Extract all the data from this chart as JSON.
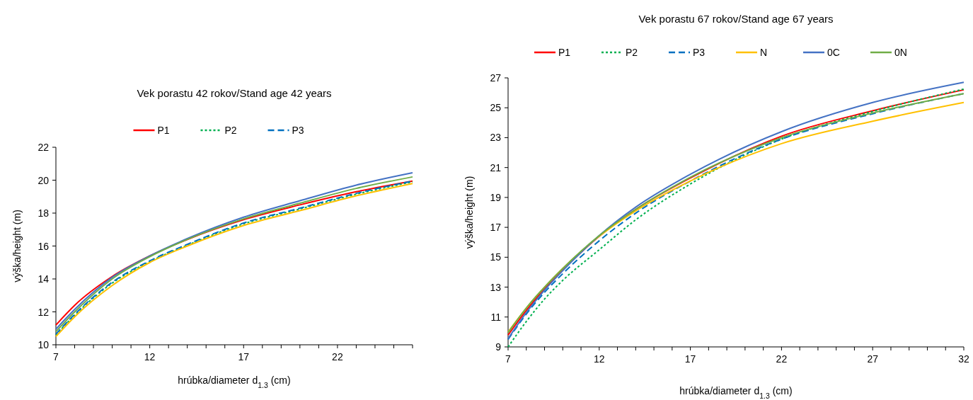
{
  "chart_data": [
    {
      "type": "line",
      "title": "Vek porastu 42 rokov/Stand age 42 years",
      "xlabel": "hrúbka/diameter d$_{1.3}$ (cm)",
      "ylabel": "výška/height (m)",
      "xlim": [
        7,
        26
      ],
      "ylim": [
        10,
        22
      ],
      "xticks": [
        7,
        {
          "value": 8,
          "label": null
        },
        {
          "value": 9,
          "label": null
        },
        {
          "value": 10,
          "label": null
        },
        {
          "value": 11,
          "label": null
        },
        12,
        {
          "value": 13,
          "label": null
        },
        {
          "value": 14,
          "label": null
        },
        {
          "value": 15,
          "label": null
        },
        {
          "value": 16,
          "label": null
        },
        17,
        {
          "value": 18,
          "label": null
        },
        {
          "value": 19,
          "label": null
        },
        {
          "value": 20,
          "label": null
        },
        {
          "value": 21,
          "label": null
        },
        22,
        {
          "value": 23,
          "label": null
        },
        {
          "value": 24,
          "label": null
        },
        {
          "value": 25,
          "label": null
        },
        {
          "value": 26,
          "label": null
        }
      ],
      "yticks": [
        10,
        12,
        14,
        16,
        18,
        20,
        22
      ],
      "grid": false,
      "legend": "top",
      "marker": "none",
      "x": [
        7,
        8,
        10,
        12,
        14,
        17,
        20,
        23,
        26
      ],
      "series": [
        {
          "name": "P1",
          "color": "#ff0000",
          "line_style": "solid",
          "values": [
            11.2,
            12.4,
            14.15,
            15.4,
            16.4,
            17.6,
            18.5,
            19.3,
            19.95
          ]
        },
        {
          "name": "P2",
          "color": "#00b050",
          "line_style": "dotted",
          "values": [
            10.6,
            11.8,
            13.75,
            15.05,
            16.05,
            17.35,
            18.25,
            19.15,
            19.9
          ]
        },
        {
          "name": "P3",
          "color": "#0070c0",
          "line_style": "dashed",
          "values": [
            10.65,
            11.85,
            13.8,
            15.1,
            16.1,
            17.4,
            18.3,
            19.2,
            19.95
          ]
        },
        {
          "color": "#ffc000",
          "line_style": "solid",
          "values": [
            10.5,
            11.7,
            13.6,
            15.0,
            16.0,
            17.25,
            18.15,
            19.05,
            19.8
          ]
        },
        {
          "color": "#4472c4",
          "line_style": "solid",
          "values": [
            10.95,
            12.15,
            14.1,
            15.4,
            16.45,
            17.75,
            18.75,
            19.7,
            20.45
          ]
        },
        {
          "color": "#70ad47",
          "line_style": "solid",
          "values": [
            10.8,
            12.0,
            14.0,
            15.35,
            16.4,
            17.65,
            18.6,
            19.5,
            20.2
          ]
        }
      ]
    },
    {
      "type": "line",
      "title": "Vek porastu 67 rokov/Stand age 67 years",
      "xlabel": "hrúbka/diameter d$_{1.3}$ (cm)",
      "ylabel": "výška/height (m)",
      "xlim": [
        7,
        32
      ],
      "ylim": [
        9,
        27
      ],
      "xticks": [
        7,
        {
          "value": 8,
          "label": null
        },
        {
          "value": 9,
          "label": null
        },
        {
          "value": 10,
          "label": null
        },
        {
          "value": 11,
          "label": null
        },
        12,
        {
          "value": 13,
          "label": null
        },
        {
          "value": 14,
          "label": null
        },
        {
          "value": 15,
          "label": null
        },
        {
          "value": 16,
          "label": null
        },
        17,
        {
          "value": 18,
          "label": null
        },
        {
          "value": 19,
          "label": null
        },
        {
          "value": 20,
          "label": null
        },
        {
          "value": 21,
          "label": null
        },
        22,
        {
          "value": 23,
          "label": null
        },
        {
          "value": 24,
          "label": null
        },
        {
          "value": 25,
          "label": null
        },
        {
          "value": 26,
          "label": null
        },
        27,
        {
          "value": 28,
          "label": null
        },
        {
          "value": 29,
          "label": null
        },
        {
          "value": 30,
          "label": null
        },
        {
          "value": 31,
          "label": null
        },
        32
      ],
      "yticks": [
        9,
        11,
        13,
        15,
        17,
        19,
        21,
        23,
        25,
        27
      ],
      "grid": false,
      "legend": "top",
      "marker": "none",
      "x": [
        7,
        8,
        9,
        10,
        12,
        14,
        17,
        22,
        27,
        32
      ],
      "series": [
        {
          "name": "P1",
          "color": "#ff0000",
          "line_style": "solid",
          "values": [
            9.8,
            11.45,
            12.9,
            14.15,
            16.4,
            18.2,
            20.3,
            23.1,
            24.8,
            26.2
          ]
        },
        {
          "name": "P2",
          "color": "#00b050",
          "line_style": "dotted",
          "values": [
            9.0,
            10.7,
            12.2,
            13.45,
            15.5,
            17.5,
            19.9,
            22.9,
            24.75,
            26.25
          ]
        },
        {
          "name": "P3",
          "color": "#0070c0",
          "line_style": "dashed",
          "values": [
            9.5,
            11.2,
            12.65,
            13.9,
            16.1,
            17.95,
            20.1,
            22.9,
            24.6,
            25.95
          ]
        },
        {
          "name": "N",
          "color": "#ffc000",
          "line_style": "solid",
          "values": [
            10.0,
            11.6,
            13.0,
            14.25,
            16.4,
            18.1,
            20.1,
            22.6,
            24.1,
            25.35
          ]
        },
        {
          "name": "0C",
          "color": "#4472c4",
          "line_style": "solid",
          "values": [
            9.55,
            11.3,
            12.8,
            14.1,
            16.45,
            18.35,
            20.55,
            23.4,
            25.35,
            26.7
          ]
        },
        {
          "name": "0N",
          "color": "#70ad47",
          "line_style": "solid",
          "values": [
            9.95,
            11.6,
            13.0,
            14.25,
            16.45,
            18.2,
            20.35,
            23.0,
            24.65,
            25.95
          ]
        }
      ]
    }
  ]
}
